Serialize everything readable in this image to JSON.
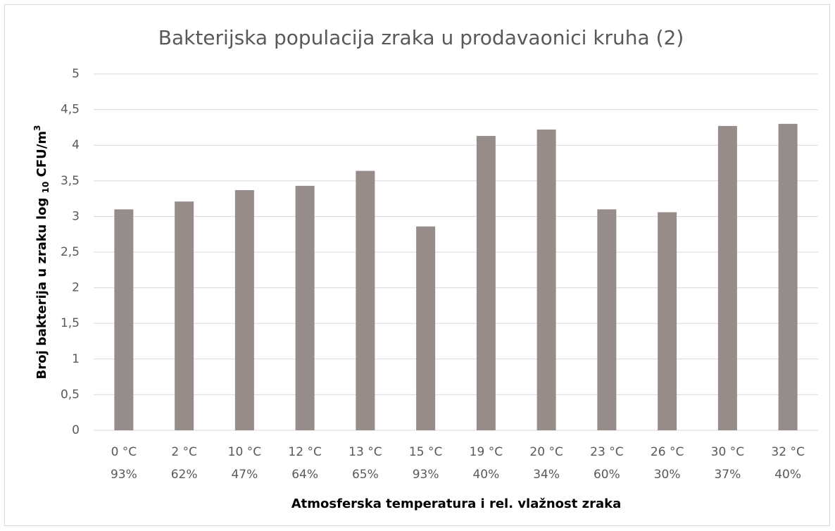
{
  "chart_data": {
    "type": "bar",
    "title": "Bakterijska populacija zraka u prodavaonici kruha (2)",
    "xlabel": "Atmosferska temperatura i rel. vlažnost zraka",
    "ylabel": {
      "text": "Broj bakterija u zraku log",
      "sub": "10",
      "unit": "CFU/m",
      "sup": "3"
    },
    "categories": [
      [
        "0 °C",
        "93%"
      ],
      [
        "2 °C",
        "62%"
      ],
      [
        "10 °C",
        "47%"
      ],
      [
        "12 °C",
        "64%"
      ],
      [
        "13 °C",
        "65%"
      ],
      [
        "15 °C",
        "93%"
      ],
      [
        "19 °C",
        "40%"
      ],
      [
        "20 °C",
        "34%"
      ],
      [
        "23 °C",
        "60%"
      ],
      [
        "26 °C",
        "30%"
      ],
      [
        "30 °C",
        "37%"
      ],
      [
        "32 °C",
        "40%"
      ]
    ],
    "values": [
      3.1,
      3.21,
      3.37,
      3.43,
      3.64,
      2.86,
      4.13,
      4.22,
      3.1,
      3.06,
      4.27,
      4.3
    ],
    "color": "#968c8a",
    "ylim": [
      0,
      5
    ],
    "yticks": [
      0,
      {
        "value": 0.5,
        "label": "0,5"
      },
      1,
      {
        "value": 1.5,
        "label": "1,5"
      },
      2,
      {
        "value": 2.5,
        "label": "2,5"
      },
      3,
      {
        "value": 3.5,
        "label": "3,5"
      },
      4,
      {
        "value": 4.5,
        "label": "4,5"
      },
      5
    ],
    "grid": true
  }
}
